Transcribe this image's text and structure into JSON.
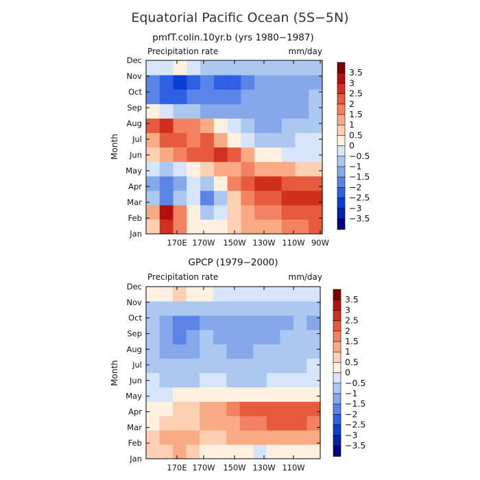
{
  "title": "Equatorial Pacific Ocean (5S−5N)",
  "colors": {
    "levels": [
      "#00007f",
      "#0020b0",
      "#0c3ed4",
      "#2f5fe2",
      "#5a84e6",
      "#86a8ea",
      "#adc8f0",
      "#d6e6f8",
      "#fff0e0",
      "#fdd0b4",
      "#f9ab86",
      "#f38262",
      "#e65a3e",
      "#d03020",
      "#b01010",
      "#7a0000"
    ]
  },
  "chart_data": [
    {
      "type": "heatmap",
      "title": "pmfT.colin.10yr.b (yrs 1980−1987)",
      "left_label": "Precipitation rate",
      "right_label": "mm/day",
      "ylabel": "Month",
      "x_ticks": [
        "170E",
        "170W",
        "150W",
        "130W",
        "110W",
        "90W"
      ],
      "y_ticks": [
        "Jan",
        "Feb",
        "Mar",
        "Apr",
        "May",
        "Jun",
        "Jul",
        "Aug",
        "Sep",
        "Oct",
        "Nov",
        "Dec"
      ],
      "colorbar_labels": [
        "3.5",
        "3",
        "2.5",
        "2",
        "1.5",
        "1",
        "0.5",
        "0",
        "−0.5",
        "−1",
        "−1.5",
        "−2",
        "−2.5",
        "−3",
        "−3.5"
      ],
      "xlim": [
        150,
        270
      ],
      "ylim": [
        1,
        12
      ],
      "grid": [
        [
          0.5,
          2.5,
          1.8,
          0.4,
          0.0,
          0.3,
          0.6,
          1.0,
          1.2,
          1.4,
          1.6,
          1.8,
          2.0
        ],
        [
          1.2,
          3.2,
          1.5,
          0.0,
          -0.6,
          -0.2,
          0.6,
          1.2,
          1.5,
          1.8,
          2.0,
          2.2,
          2.4
        ],
        [
          -1.0,
          -1.6,
          -1.0,
          -0.2,
          -1.6,
          -0.8,
          0.8,
          1.6,
          2.0,
          2.4,
          2.6,
          2.8,
          2.5
        ],
        [
          -1.2,
          -2.0,
          -1.2,
          -0.5,
          -0.8,
          0.4,
          1.6,
          2.4,
          2.6,
          2.6,
          2.4,
          2.2,
          2.0
        ],
        [
          -0.4,
          -0.6,
          -0.4,
          0.2,
          0.6,
          1.2,
          1.4,
          1.5,
          1.4,
          1.2,
          1.0,
          0.8,
          0.6
        ],
        [
          0.5,
          1.2,
          1.6,
          2.0,
          2.2,
          2.6,
          2.4,
          1.2,
          0.4,
          0.0,
          -0.2,
          -0.4,
          -0.4
        ],
        [
          1.4,
          2.2,
          2.0,
          1.6,
          2.0,
          1.2,
          0.2,
          -0.4,
          -0.8,
          -0.8,
          -0.6,
          -0.5,
          -0.3
        ],
        [
          2.0,
          2.8,
          1.8,
          1.6,
          1.0,
          0.4,
          -0.5,
          -1.0,
          -1.2,
          -1.1,
          -1.0,
          -0.9,
          -0.6
        ],
        [
          0.0,
          -0.5,
          -0.8,
          -1.0,
          -1.2,
          -1.4,
          -1.5,
          -1.5,
          -1.4,
          -1.4,
          -1.3,
          -1.2,
          -1.0
        ],
        [
          -1.6,
          -2.2,
          -2.2,
          -2.0,
          -1.8,
          -1.9,
          -2.0,
          -1.5,
          -1.3,
          -1.2,
          -1.2,
          -1.1,
          -1.0
        ],
        [
          -2.0,
          -2.4,
          -2.6,
          -2.2,
          -2.0,
          -2.2,
          -2.3,
          -1.6,
          -1.4,
          -1.4,
          -1.3,
          -1.2,
          -1.1
        ],
        [
          -0.4,
          -0.2,
          0.2,
          -0.4,
          -0.8,
          -0.8,
          -1.0,
          -1.0,
          -0.9,
          -0.8,
          -0.8,
          -0.7,
          -0.6
        ]
      ]
    },
    {
      "type": "heatmap",
      "title": "GPCP (1979−2000)",
      "left_label": "Precipitation rate",
      "right_label": "mm/day",
      "ylabel": "Month",
      "x_ticks": [
        "170E",
        "170W",
        "150W",
        "130W",
        "110W"
      ],
      "y_ticks": [
        "Jan",
        "Feb",
        "Mar",
        "Apr",
        "May",
        "Jun",
        "Jul",
        "Aug",
        "Sep",
        "Oct",
        "Nov",
        "Dec"
      ],
      "colorbar_labels": [
        "3.5",
        "3",
        "2.5",
        "2",
        "1.5",
        "1",
        "0.5",
        "0",
        "−0.5",
        "−1",
        "−1.5",
        "−2",
        "−2.5",
        "−3",
        "−3.5"
      ],
      "xlim": [
        150,
        270
      ],
      "ylim": [
        1,
        12
      ],
      "grid": [
        [
          0.6,
          0.8,
          1.2,
          0.8,
          0.4,
          0.2,
          0.2,
          0.0,
          -0.2,
          0.0,
          0.2,
          0.2,
          0.2
        ],
        [
          0.6,
          1.0,
          1.2,
          1.0,
          0.6,
          0.8,
          1.0,
          1.2,
          1.2,
          1.2,
          1.4,
          1.4,
          1.2
        ],
        [
          0.4,
          0.6,
          0.8,
          0.8,
          1.0,
          1.2,
          1.4,
          1.6,
          1.8,
          2.0,
          2.2,
          2.2,
          1.8
        ],
        [
          0.2,
          0.4,
          0.6,
          0.8,
          1.0,
          1.2,
          1.6,
          2.0,
          2.2,
          2.4,
          2.4,
          2.2,
          2.0
        ],
        [
          -0.4,
          -0.2,
          0.0,
          0.2,
          0.4,
          0.4,
          0.4,
          0.4,
          0.4,
          0.4,
          0.2,
          0.2,
          0.0
        ],
        [
          -0.2,
          -0.8,
          -0.8,
          -0.6,
          -0.2,
          -0.4,
          -0.6,
          -0.6,
          -0.6,
          -0.4,
          -0.4,
          -0.2,
          -0.2
        ],
        [
          -0.6,
          -1.0,
          -1.0,
          -1.0,
          -0.8,
          -0.8,
          -1.0,
          -1.0,
          -0.8,
          -0.6,
          -0.6,
          -0.6,
          -0.4
        ],
        [
          -0.8,
          -1.2,
          -1.4,
          -1.2,
          -1.0,
          -1.0,
          -1.2,
          -1.2,
          -1.0,
          -1.0,
          -0.8,
          -0.8,
          -0.6
        ],
        [
          -1.0,
          -1.4,
          -1.6,
          -1.4,
          -1.0,
          -1.2,
          -1.4,
          -1.4,
          -1.4,
          -1.2,
          -1.0,
          -1.0,
          -1.0
        ],
        [
          -1.0,
          -1.4,
          -1.8,
          -1.8,
          -1.4,
          -1.2,
          -1.4,
          -1.4,
          -1.4,
          -1.4,
          -1.2,
          -1.0,
          -1.2
        ],
        [
          -0.6,
          -0.8,
          -1.0,
          -1.0,
          -0.8,
          -0.6,
          -0.8,
          -0.8,
          -0.8,
          -0.8,
          -0.8,
          -0.8,
          -0.8
        ],
        [
          0.0,
          0.2,
          0.6,
          0.4,
          0.0,
          -0.2,
          -0.2,
          -0.2,
          -0.2,
          -0.2,
          -0.2,
          -0.4,
          -0.4
        ]
      ]
    }
  ]
}
